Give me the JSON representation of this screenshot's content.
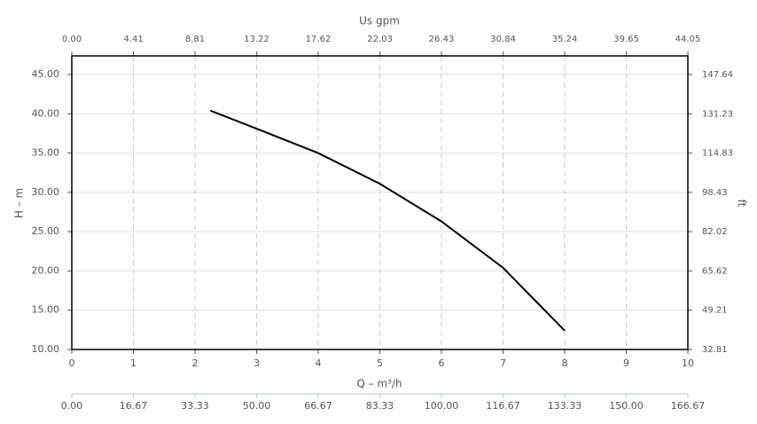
{
  "chart_data": {
    "type": "line",
    "x_label": "Q – m³/h",
    "x2_label": "Us gpm",
    "y_label": "H – m",
    "y2_label": "ft",
    "x": [
      2.25,
      3,
      4,
      5,
      6,
      7,
      8
    ],
    "series": [
      {
        "color": "#000000",
        "values": [
          40.4,
          38.1,
          35.0,
          31.1,
          26.3,
          20.4,
          12.4
        ]
      }
    ],
    "xlim": [
      0,
      10
    ],
    "xticks": [
      0,
      1,
      2,
      3,
      4,
      5,
      6,
      7,
      8,
      9,
      10
    ],
    "ylim": [
      10,
      47.37
    ],
    "yticks": [
      {
        "value": 10,
        "label": "10.00"
      },
      {
        "value": 15,
        "label": "15.00"
      },
      {
        "value": 20,
        "label": "20.00"
      },
      {
        "value": 25,
        "label": "25.00"
      },
      {
        "value": 30,
        "label": "30.00"
      },
      {
        "value": 35,
        "label": "35.00"
      },
      {
        "value": 40,
        "label": "40.00"
      },
      {
        "value": 45,
        "label": "45.00"
      }
    ],
    "y2lim": [
      32.81,
      155.42
    ],
    "y2ticks": [
      32.81,
      49.21,
      65.62,
      82.02,
      98.43,
      114.83,
      131.23,
      147.64
    ],
    "x2lim": [
      0,
      44.05
    ],
    "x2ticks": [
      {
        "value": 0,
        "label": "0.00"
      },
      4.41,
      8.81,
      13.22,
      17.62,
      22.03,
      26.43,
      30.84,
      35.24,
      39.65,
      44.05
    ],
    "x3lim": [
      0,
      166.67
    ],
    "x3ticks": [
      {
        "value": 0,
        "label": "0.00"
      },
      16.67,
      33.33,
      {
        "value": 50,
        "label": "50.00"
      },
      66.67,
      83.33,
      {
        "value": 100,
        "label": "100.00"
      },
      116.67,
      133.33,
      {
        "value": 150,
        "label": "150.00"
      },
      166.67
    ],
    "grid": true
  }
}
